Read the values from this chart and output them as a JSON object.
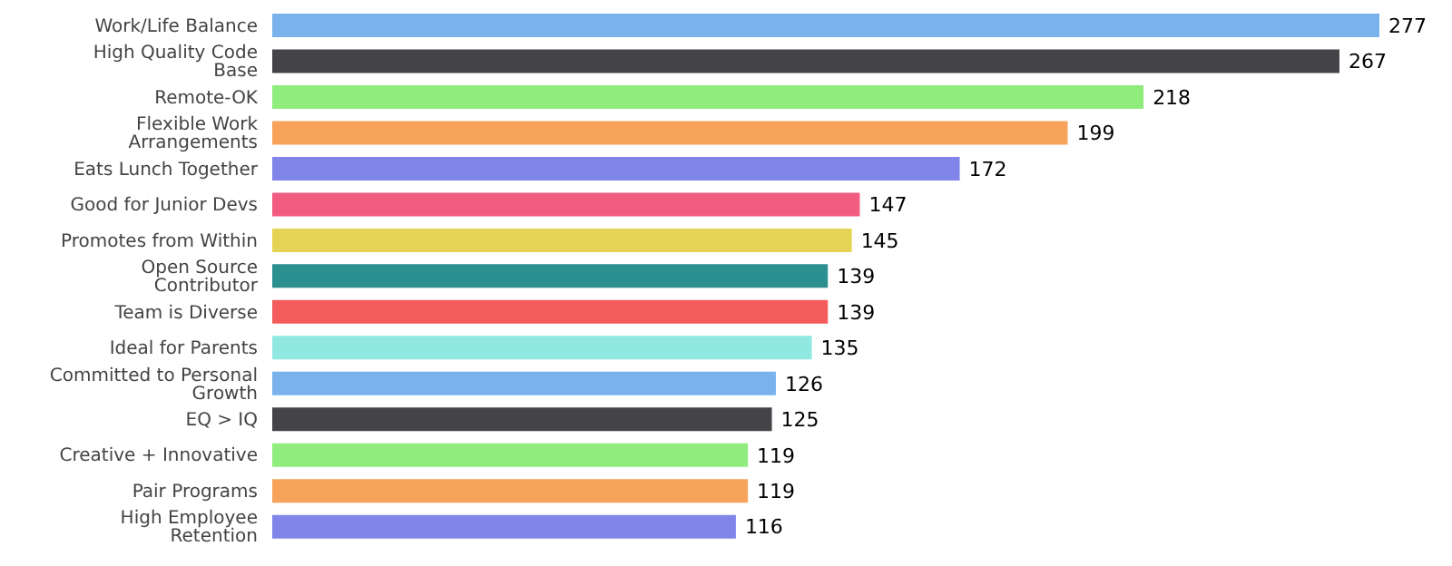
{
  "chart_data": {
    "type": "bar",
    "orientation": "horizontal",
    "data_labels": true,
    "categories": [
      "Work/Life Balance",
      "High Quality Code Base",
      "Remote-OK",
      "Flexible Work Arrangements",
      "Eats Lunch Together",
      "Good for Junior Devs",
      "Promotes from Within",
      "Open Source Contributor",
      "Team is Diverse",
      "Ideal for Parents",
      "Committed to Personal Growth",
      "EQ > IQ",
      "Creative + Innovative",
      "Pair Programs",
      "High Employee Retention"
    ],
    "values": [
      277,
      267,
      218,
      199,
      172,
      147,
      145,
      139,
      139,
      135,
      126,
      125,
      119,
      119,
      116
    ],
    "colors": [
      "#7ab3ec",
      "#434348",
      "#90ed7d",
      "#f7a35c",
      "#8085e9",
      "#f15c80",
      "#e4d354",
      "#2b908f",
      "#f45b5b",
      "#91e8e1",
      "#7ab3ec",
      "#434348",
      "#90ed7d",
      "#f7a35c",
      "#8085e9"
    ]
  }
}
